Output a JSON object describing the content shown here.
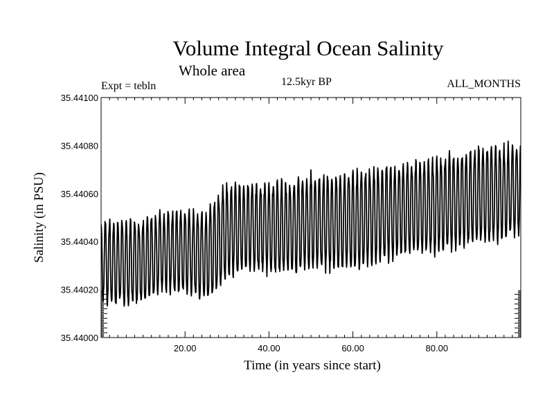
{
  "header": {
    "title": "Volume Integral Ocean Salinity",
    "subtitle": "Whole area",
    "experiment": "Expt = tebln",
    "period": "12.5kyr BP",
    "months": "ALL_MONTHS"
  },
  "chart_data": {
    "type": "line",
    "title": "Volume Integral Ocean Salinity",
    "subtitle": "Whole area",
    "xlabel": "Time (in years since start)",
    "ylabel": "Salinity (in PSU)",
    "xlim": [
      0,
      100
    ],
    "ylim": [
      35.44,
      35.441
    ],
    "x_ticks": [
      20,
      40,
      60,
      80
    ],
    "x_tick_labels": [
      "20.00",
      "40.00",
      "60.00",
      "80.00"
    ],
    "y_ticks": [
      35.44,
      35.4402,
      35.4404,
      35.4406,
      35.4408,
      35.441
    ],
    "y_tick_labels": [
      "35.44000",
      "35.44020",
      "35.44040",
      "35.44060",
      "35.44080",
      "35.44100"
    ],
    "grid": false,
    "series": [
      {
        "name": "Salinity",
        "sampling": "monthly",
        "annual_max_envelope": {
          "x": [
            0,
            5,
            10,
            15,
            20,
            25,
            27,
            30,
            35,
            40,
            45,
            50,
            55,
            60,
            65,
            70,
            75,
            80,
            85,
            90,
            95,
            100
          ],
          "y": [
            35.44048,
            35.44047,
            35.44049,
            35.44052,
            35.44052,
            35.44051,
            35.44058,
            35.44063,
            35.44064,
            35.44063,
            35.44064,
            35.44067,
            35.44066,
            35.44068,
            35.4407,
            35.44071,
            35.44072,
            35.44074,
            35.44076,
            35.44078,
            35.44078,
            35.4408
          ]
        },
        "annual_min_envelope": {
          "x": [
            0,
            5,
            10,
            15,
            20,
            25,
            27,
            30,
            35,
            40,
            45,
            50,
            55,
            60,
            65,
            70,
            75,
            80,
            85,
            90,
            95,
            100
          ],
          "y": [
            35.44016,
            35.44015,
            35.44015,
            35.4402,
            35.4402,
            35.44016,
            35.44018,
            35.44026,
            35.44029,
            35.44028,
            35.44028,
            35.4403,
            35.44029,
            35.44029,
            35.44031,
            35.44034,
            35.44036,
            35.44036,
            35.44038,
            35.4404,
            35.44041,
            35.44044
          ]
        }
      }
    ]
  }
}
